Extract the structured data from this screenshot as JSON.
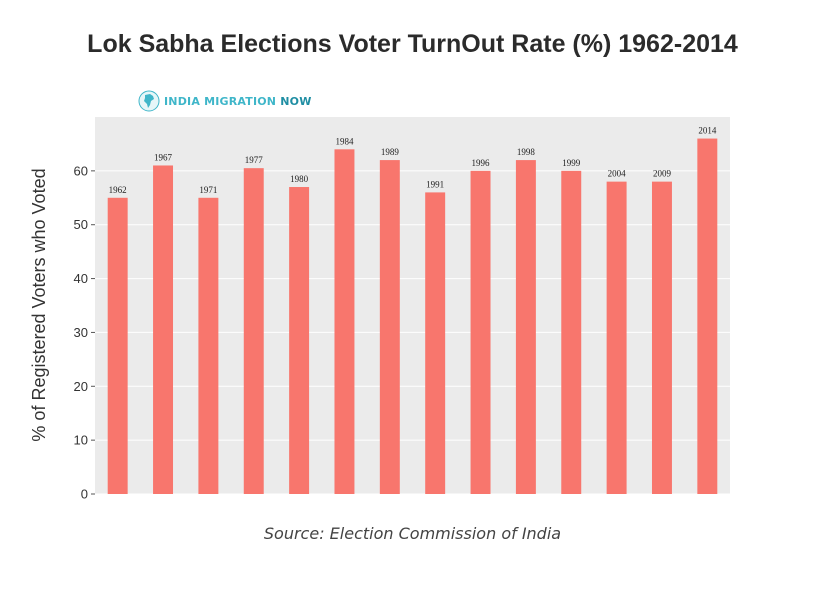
{
  "title": "Lok Sabha Elections Voter TurnOut Rate (%) 1962-2014",
  "logo": {
    "text_main": "INDIA MIGRATION ",
    "text_accent": "NOW",
    "icon": "india-map-icon"
  },
  "source": "Source: Election Commission of India",
  "colors": {
    "bar": "#f8766d",
    "plot_bg": "#ebebeb",
    "grid": "#ffffff",
    "title": "#2b2b2b"
  },
  "chart_data": {
    "type": "bar",
    "title": "Lok Sabha Elections Voter TurnOut Rate (%) 1962-2014",
    "xlabel": "",
    "ylabel": "% of Registered Voters who Voted",
    "categories": [
      "1962",
      "1967",
      "1971",
      "1977",
      "1980",
      "1984",
      "1989",
      "1991",
      "1996",
      "1998",
      "1999",
      "2004",
      "2009",
      "2014"
    ],
    "values": [
      55,
      61,
      55,
      60.5,
      57,
      64,
      62,
      56,
      60,
      62,
      60,
      58,
      58,
      66
    ],
    "data_labels": [
      "1962",
      "1967",
      "1971",
      "1977",
      "1980",
      "1984",
      "1989",
      "1991",
      "1996",
      "1998",
      "1999",
      "2004",
      "2009",
      "2014"
    ],
    "ylim": [
      0,
      70
    ],
    "yticks": [
      0,
      10,
      20,
      30,
      40,
      50,
      60
    ],
    "grid": true,
    "legend": "none"
  }
}
